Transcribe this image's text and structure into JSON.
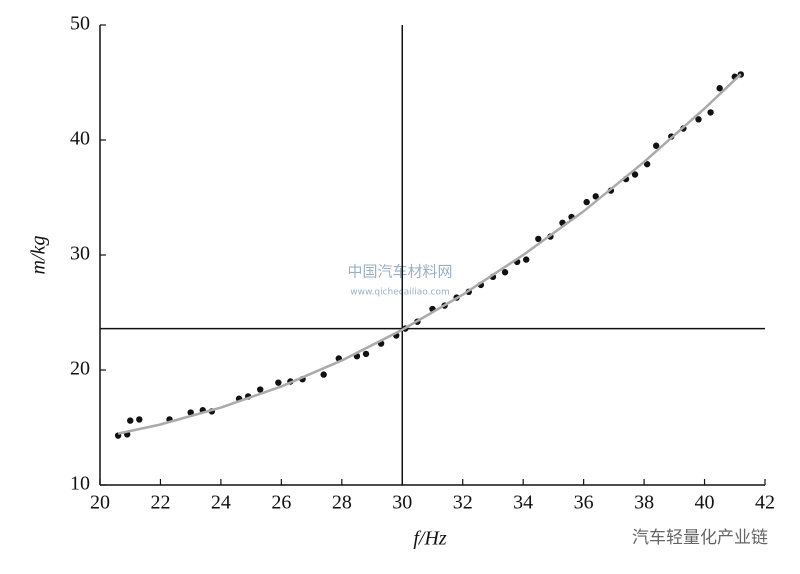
{
  "chart_data": {
    "type": "scatter",
    "x_label": "f/Hz",
    "y_label": "m/kg",
    "xlim": [
      20,
      42
    ],
    "xticks": [
      20,
      22,
      24,
      26,
      28,
      30,
      32,
      34,
      36,
      38,
      40,
      42
    ],
    "ylim": [
      10,
      50
    ],
    "yticks": [
      10,
      20,
      30,
      40,
      50
    ],
    "reference_x": 30,
    "reference_y": 23.6,
    "series": [
      {
        "mode": "markers",
        "color": "#111111",
        "x": [
          20.6,
          20.9,
          21.0,
          21.3,
          22.3,
          23.0,
          23.4,
          23.7,
          24.6,
          24.9,
          25.3,
          25.9,
          26.3,
          26.7,
          27.4,
          27.9,
          28.5,
          28.8,
          29.3,
          29.8,
          30.1,
          30.5,
          31.0,
          31.4,
          31.8,
          32.2,
          32.6,
          33.0,
          33.4,
          33.8,
          34.1,
          34.5,
          34.9,
          35.3,
          35.6,
          36.1,
          36.4,
          36.9,
          37.4,
          37.7,
          38.1,
          38.4,
          38.9,
          39.3,
          39.8,
          40.2,
          40.5,
          41.0,
          41.2
        ],
        "values": [
          14.3,
          14.4,
          15.6,
          15.7,
          15.7,
          16.3,
          16.5,
          16.4,
          17.5,
          17.7,
          18.3,
          18.9,
          19.0,
          19.2,
          19.6,
          21.0,
          21.2,
          21.4,
          22.3,
          23.0,
          23.6,
          24.2,
          25.3,
          25.6,
          26.3,
          26.8,
          27.4,
          28.1,
          28.5,
          29.4,
          29.6,
          31.4,
          31.6,
          32.8,
          33.3,
          34.6,
          35.1,
          35.6,
          36.6,
          37.0,
          37.9,
          39.5,
          40.3,
          41.0,
          41.8,
          42.4,
          44.5,
          45.5,
          45.7
        ]
      },
      {
        "mode": "line",
        "color": "#aaaaaa",
        "x": [
          20.6,
          22,
          24,
          26,
          28,
          30,
          32,
          34,
          36,
          38,
          40,
          41.2
        ],
        "values": [
          14.47,
          15.26,
          16.73,
          18.57,
          20.83,
          23.5,
          26.55,
          30.0,
          33.8,
          38.09,
          42.74,
          45.72
        ]
      }
    ],
    "annotations": [
      "中国汽车材料网",
      "www.qichecailiao.com",
      "汽车轻量化产业链"
    ]
  }
}
